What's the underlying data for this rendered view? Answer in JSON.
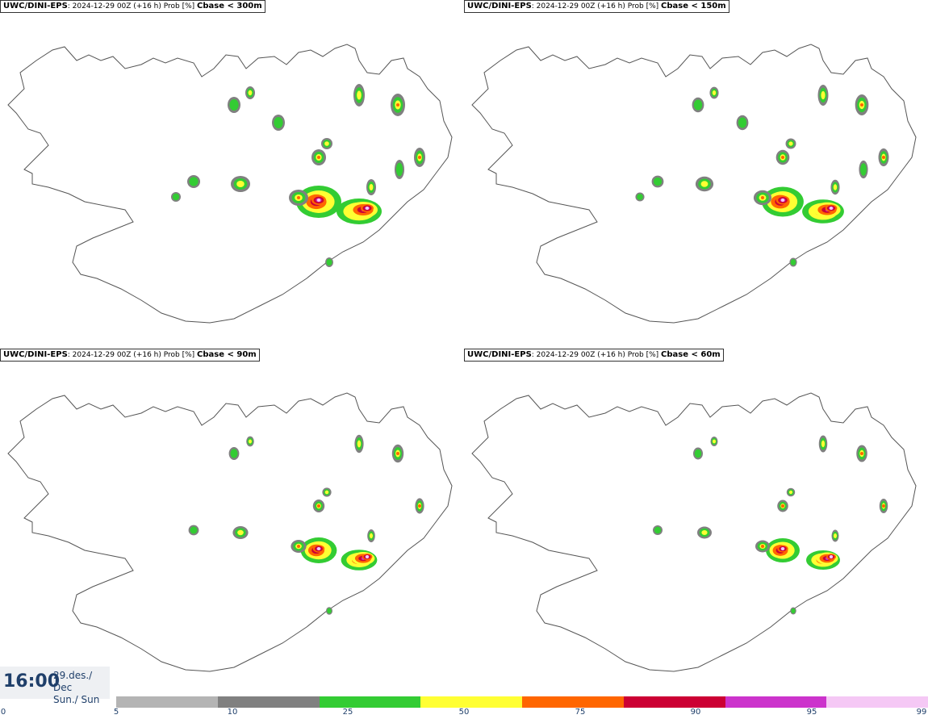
{
  "panels": [
    {
      "model": "UWC/DINI-EPS",
      "run": ": 2024-12-29 00Z (+16 h) Prob [%]",
      "variable": "Cbase < 300m"
    },
    {
      "model": "UWC/DINI-EPS",
      "run": ": 2024-12-29 00Z (+16 h) Prob [%]",
      "variable": "Cbase < 150m"
    },
    {
      "model": "UWC/DINI-EPS",
      "run": ": 2024-12-29 00Z (+16 h) Prob [%]",
      "variable": "Cbase < 90m"
    },
    {
      "model": "UWC/DINI-EPS",
      "run": ": 2024-12-29 00Z (+16 h) Prob [%]",
      "variable": "Cbase < 60m"
    }
  ],
  "clock": {
    "time": "16:00",
    "date_line1": "29.des./ Dec",
    "date_line2": "Sun./ Sun"
  },
  "legend": {
    "ticks": [
      "0",
      "5",
      "10",
      "25",
      "50",
      "75",
      "90",
      "95",
      "99"
    ],
    "colors": [
      "#b4b4b4",
      "#808080",
      "#33cc33",
      "#ffff33",
      "#ff6600",
      "#cc0033",
      "#cc33cc",
      "#f5c8f5"
    ]
  }
}
